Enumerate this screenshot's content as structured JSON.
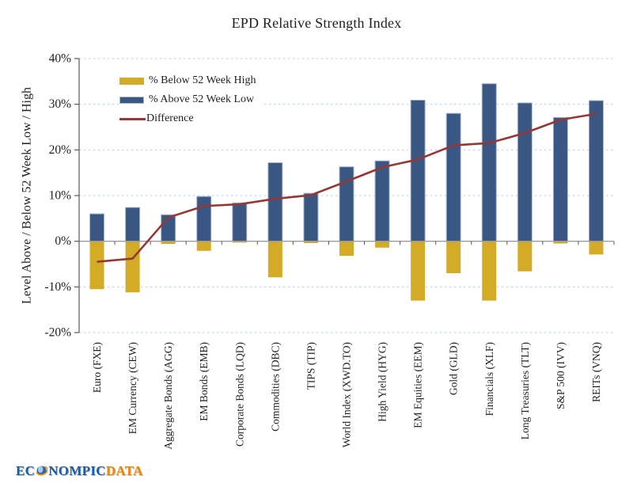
{
  "chart_data": {
    "type": "bar",
    "title": "EPD Relative Strength Index",
    "ylabel": "Level Above / Below 52 Week Low / High",
    "ylim": [
      -20,
      40
    ],
    "grid": "horizontal dashed gridlines every 10%, solid gray axis line at 0%",
    "legend_position": "inside top-left",
    "y_ticks": [
      {
        "value": 40,
        "label": "40%"
      },
      {
        "value": 30,
        "label": "30%"
      },
      {
        "value": 20,
        "label": "20%"
      },
      {
        "value": 10,
        "label": "10%"
      },
      {
        "value": 0,
        "label": "0%"
      },
      {
        "value": -10,
        "label": "-10%"
      },
      {
        "value": -20,
        "label": "-20%"
      }
    ],
    "categories": [
      "Euro (FXE)",
      "EM Currency (CEW)",
      "Aggregate Bonds (AGG)",
      "EM Bonds (EMB)",
      "Corporate Bonds (LQD)",
      "Commodities (DBC)",
      "TIPS (TIP)",
      "World Index (XWD.TO)",
      "High Yield (HYG)",
      "EM Equities (EEM)",
      "Gold (GLD)",
      "Financials (XLF)",
      "Long Treasuries (TLT)",
      "S&P 500 (IVV)",
      "REITs (VNQ)"
    ],
    "series": [
      {
        "name": "% Below 52 Week High",
        "type": "bar",
        "color": "#D3AB27",
        "values": [
          -10.5,
          -11.2,
          -0.6,
          -2.1,
          -0.3,
          -7.9,
          -0.4,
          -3.2,
          -1.4,
          -13.0,
          -7.0,
          -13.0,
          -6.6,
          -0.5,
          -2.9
        ]
      },
      {
        "name": "% Above 52 Week Low",
        "type": "bar",
        "color": "#3A5783",
        "values": [
          6.0,
          7.4,
          5.8,
          9.8,
          8.4,
          17.2,
          10.5,
          16.3,
          17.6,
          30.9,
          28.0,
          34.5,
          30.3,
          27.1,
          30.8
        ]
      },
      {
        "name": "Difference",
        "type": "line",
        "color": "#953735",
        "values": [
          -4.5,
          -3.8,
          5.2,
          7.7,
          8.1,
          9.3,
          10.1,
          13.1,
          16.2,
          17.9,
          21.0,
          21.5,
          23.7,
          26.6,
          27.9
        ]
      }
    ]
  },
  "logo": {
    "part1": "EC",
    "part2": "NOMPIC",
    "part3": "DATA",
    "icon": "globe-icon"
  },
  "colors": {
    "bar_below": "#D3AB27",
    "bar_above": "#3A5783",
    "bar_above_edge": "#A6B5CB",
    "difference_line": "#953735",
    "gridline": "#B7CEE6",
    "zero_line": "#9B9B9B",
    "axis": "#595959",
    "text": "#1F1F1F",
    "background": "#FFFFFF",
    "logo_blue": "#1A5CA6",
    "logo_orange": "#E8860D"
  }
}
